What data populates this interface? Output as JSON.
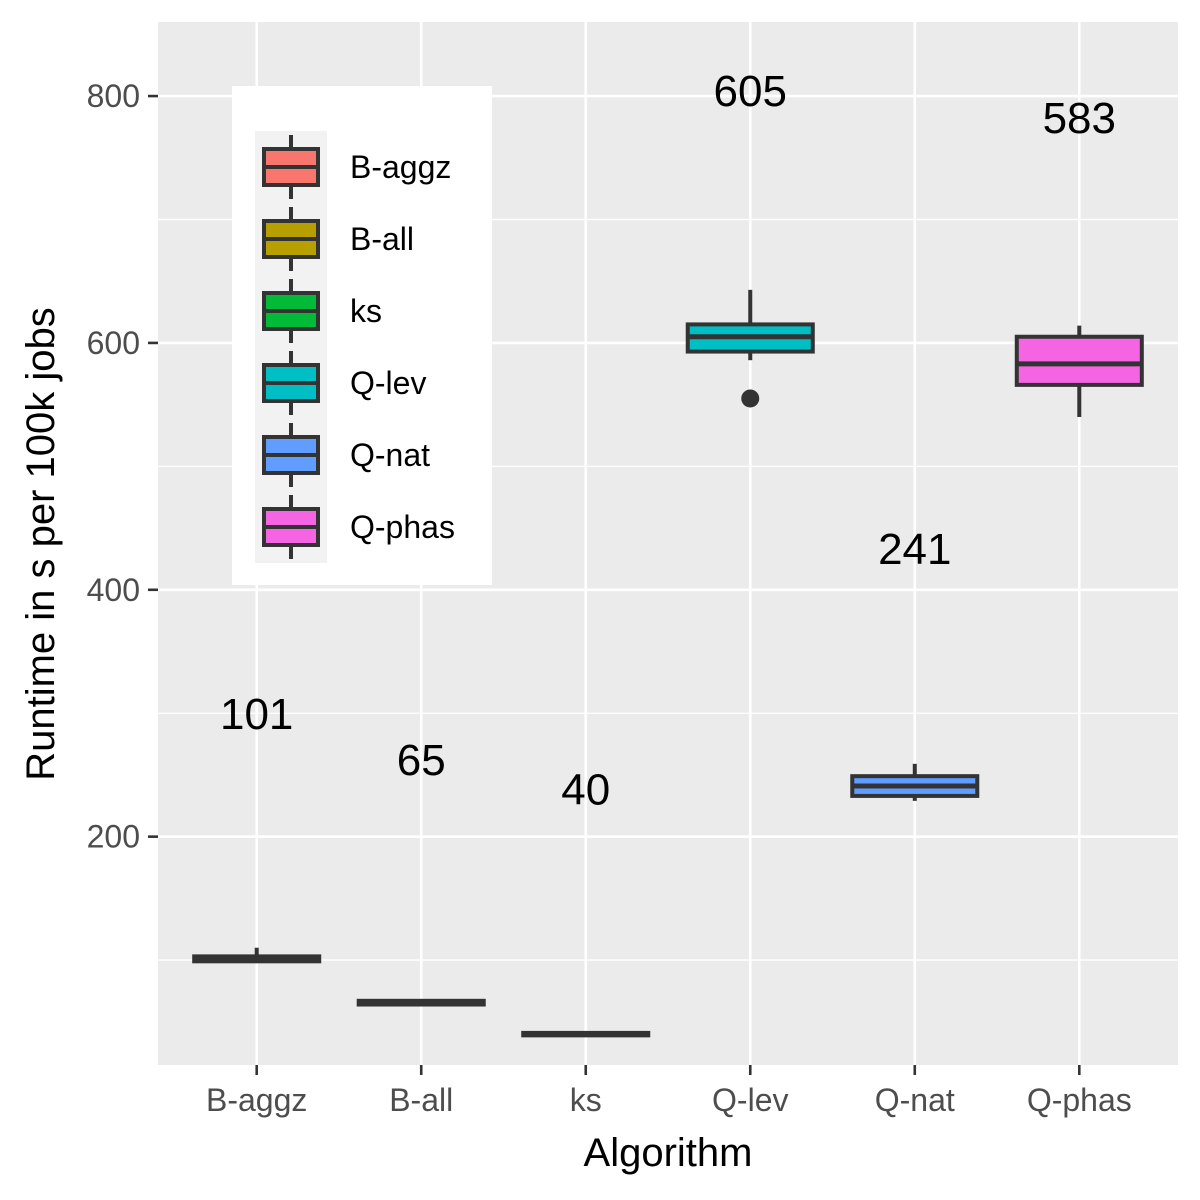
{
  "chart_data": {
    "type": "boxplot",
    "xlabel": "Algorithm",
    "ylabel": "Runtime in s per 100k jobs",
    "ylim": [
      15,
      860
    ],
    "yticks": [
      200,
      400,
      600,
      800
    ],
    "grid": true,
    "legend": {
      "placement": "top-left inside",
      "title": ""
    },
    "categories": [
      "B-aggz",
      "B-all",
      "ks",
      "Q-lev",
      "Q-nat",
      "Q-phas"
    ],
    "series": [
      {
        "name": "B-aggz",
        "color": "#F8766D",
        "whisker_low": 99,
        "q1": 99,
        "median": 101,
        "q3": 103,
        "whisker_high": 110,
        "outliers": [],
        "label": "101"
      },
      {
        "name": "B-all",
        "color": "#B79F00",
        "whisker_low": 64,
        "q1": 64,
        "median": 65,
        "q3": 67,
        "whisker_high": 68,
        "outliers": [],
        "label": "65"
      },
      {
        "name": "ks",
        "color": "#00BA38",
        "whisker_low": 39,
        "q1": 39,
        "median": 40,
        "q3": 41,
        "whisker_high": 42,
        "outliers": [],
        "label": "40"
      },
      {
        "name": "Q-lev",
        "color": "#00BFC4",
        "whisker_low": 586,
        "q1": 593,
        "median": 605,
        "q3": 615,
        "whisker_high": 643,
        "outliers": [
          555
        ],
        "label": "605"
      },
      {
        "name": "Q-nat",
        "color": "#619CFF",
        "whisker_low": 229,
        "q1": 233,
        "median": 241,
        "q3": 249,
        "whisker_high": 259,
        "outliers": [],
        "label": "241"
      },
      {
        "name": "Q-phas",
        "color": "#F564E3",
        "whisker_low": 540,
        "q1": 566,
        "median": 583,
        "q3": 605,
        "whisker_high": 614,
        "outliers": [],
        "label": "583"
      }
    ],
    "median_labels_y": [
      300,
      263,
      239,
      805,
      434,
      783
    ]
  }
}
